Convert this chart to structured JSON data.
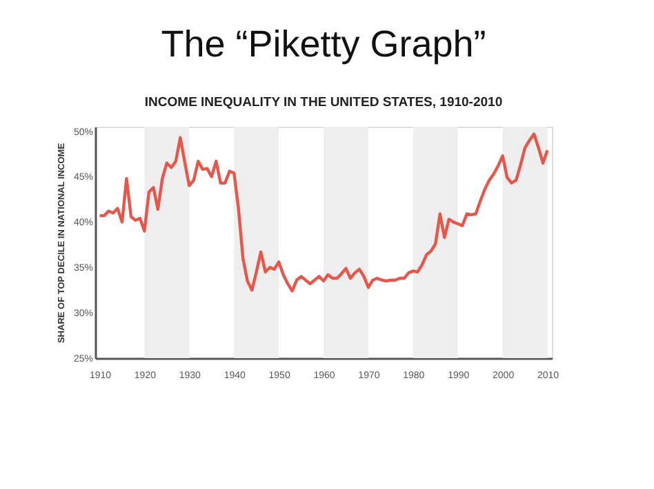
{
  "chart_data": {
    "type": "line",
    "title": "The “Piketty Graph”",
    "subtitle": "INCOME INEQUALITY IN THE UNITED STATES, 1910-2010",
    "ylabel": "SHARE OF TOP DECILE IN NATIONAL INCOME",
    "x": [
      1910,
      1911,
      1912,
      1913,
      1914,
      1915,
      1916,
      1917,
      1918,
      1919,
      1920,
      1921,
      1922,
      1923,
      1924,
      1925,
      1926,
      1927,
      1928,
      1929,
      1930,
      1931,
      1932,
      1933,
      1934,
      1935,
      1936,
      1937,
      1938,
      1939,
      1940,
      1941,
      1942,
      1943,
      1944,
      1945,
      1946,
      1947,
      1948,
      1949,
      1950,
      1951,
      1952,
      1953,
      1954,
      1955,
      1956,
      1957,
      1958,
      1959,
      1960,
      1961,
      1962,
      1963,
      1964,
      1965,
      1966,
      1967,
      1968,
      1969,
      1970,
      1971,
      1972,
      1973,
      1974,
      1975,
      1976,
      1977,
      1978,
      1979,
      1980,
      1981,
      1982,
      1983,
      1984,
      1985,
      1986,
      1987,
      1988,
      1989,
      1990,
      1991,
      1992,
      1993,
      1994,
      1995,
      1996,
      1997,
      1998,
      1999,
      2000,
      2001,
      2002,
      2003,
      2004,
      2005,
      2006,
      2007,
      2008,
      2009,
      2010
    ],
    "series": [
      {
        "color": "#e5574b",
        "values": [
          40.7,
          40.7,
          41.2,
          41.0,
          41.5,
          40.0,
          44.8,
          40.6,
          40.2,
          40.4,
          39.0,
          43.3,
          43.8,
          41.4,
          44.8,
          46.5,
          46.0,
          46.7,
          49.3,
          46.6,
          44.0,
          44.6,
          46.7,
          45.8,
          45.9,
          45.0,
          46.7,
          44.3,
          44.3,
          45.6,
          45.4,
          41.5,
          36.0,
          33.5,
          32.5,
          34.5,
          36.7,
          34.5,
          35.0,
          34.8,
          35.6,
          34.2,
          33.2,
          32.4,
          33.6,
          34.0,
          33.6,
          33.2,
          33.6,
          34.0,
          33.5,
          34.2,
          33.8,
          33.8,
          34.3,
          34.9,
          33.8,
          34.4,
          34.8,
          34.0,
          32.8,
          33.6,
          33.8,
          33.6,
          33.5,
          33.6,
          33.6,
          33.8,
          33.8,
          34.4,
          34.6,
          34.5,
          35.3,
          36.4,
          36.8,
          37.6,
          40.9,
          38.3,
          40.3,
          40.0,
          39.8,
          39.6,
          40.9,
          40.8,
          40.9,
          42.3,
          43.6,
          44.6,
          45.3,
          46.2,
          47.3,
          44.9,
          44.3,
          44.6,
          46.3,
          48.2,
          49.0,
          49.7,
          48.2,
          46.5,
          47.9
        ]
      }
    ],
    "xlim": [
      1909,
      2011
    ],
    "xticks": [
      1910,
      1920,
      1930,
      1940,
      1950,
      1960,
      1970,
      1980,
      1990,
      2000,
      2010
    ],
    "ylim": [
      25,
      50.5
    ],
    "yticks": [
      {
        "value": 25,
        "label": "25%"
      },
      {
        "value": 30,
        "label": "30%"
      },
      {
        "value": 35,
        "label": "35%"
      },
      {
        "value": 40,
        "label": "40%"
      },
      {
        "value": 45,
        "label": "45%"
      },
      {
        "value": 50,
        "label": "50%"
      }
    ],
    "bands": [
      {
        "axis": "x",
        "from": 1920,
        "to": 1930,
        "label": null,
        "color": "#eeeeee"
      },
      {
        "axis": "x",
        "from": 1940,
        "to": 1950,
        "label": null,
        "color": "#eeeeee"
      },
      {
        "axis": "x",
        "from": 1960,
        "to": 1970,
        "label": null,
        "color": "#eeeeee"
      },
      {
        "axis": "x",
        "from": 1980,
        "to": 1990,
        "label": null,
        "color": "#eeeeee"
      },
      {
        "axis": "x",
        "from": 2000,
        "to": 2010,
        "label": null,
        "color": "#eeeeee"
      }
    ],
    "grid": false,
    "line_style": "solid",
    "marker": "none"
  }
}
